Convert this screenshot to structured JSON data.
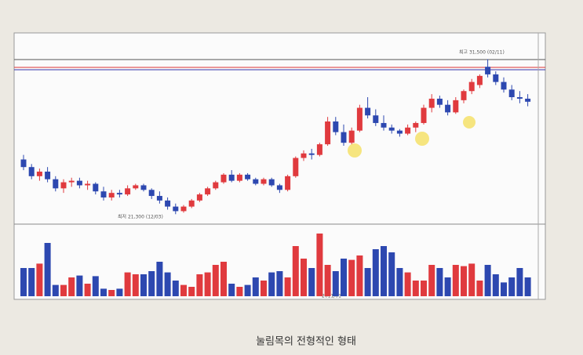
{
  "chart_data": {
    "type": "candlestick",
    "caption": "눌림목의 전형적인 형태",
    "annotations": [
      "최고 31,500 (02/11)",
      "최저 21,300 (12/03)",
      "2011/01"
    ],
    "up_color": "#e03a3e",
    "down_color": "#2d48b0",
    "ylim": [
      20800,
      32300
    ],
    "volume_ylim": [
      0,
      100
    ],
    "ohlc": [
      [
        24900,
        25200,
        24200,
        24400
      ],
      [
        24400,
        24600,
        23600,
        23800
      ],
      [
        23800,
        24300,
        23500,
        24100
      ],
      [
        24100,
        24400,
        23400,
        23600
      ],
      [
        23600,
        23800,
        22800,
        23000
      ],
      [
        23000,
        23600,
        22700,
        23400
      ],
      [
        23400,
        23700,
        23100,
        23500
      ],
      [
        23500,
        23700,
        23000,
        23200
      ],
      [
        23200,
        23500,
        22900,
        23300
      ],
      [
        23300,
        23400,
        22600,
        22800
      ],
      [
        22800,
        23100,
        22200,
        22400
      ],
      [
        22400,
        22900,
        22200,
        22700
      ],
      [
        22700,
        22900,
        22400,
        22600
      ],
      [
        22600,
        23200,
        22500,
        23000
      ],
      [
        23000,
        23300,
        22900,
        23200
      ],
      [
        23200,
        23300,
        22800,
        22900
      ],
      [
        22900,
        23000,
        22300,
        22500
      ],
      [
        22500,
        22800,
        22000,
        22200
      ],
      [
        22200,
        22400,
        21600,
        21800
      ],
      [
        21800,
        22000,
        21300,
        21500
      ],
      [
        21500,
        21900,
        21400,
        21800
      ],
      [
        21800,
        22300,
        21700,
        22200
      ],
      [
        22200,
        22700,
        22100,
        22600
      ],
      [
        22600,
        23100,
        22500,
        23000
      ],
      [
        23000,
        23500,
        22900,
        23400
      ],
      [
        23400,
        24000,
        23300,
        23900
      ],
      [
        23900,
        24200,
        23400,
        23500
      ],
      [
        23500,
        24000,
        23400,
        23900
      ],
      [
        23900,
        24000,
        23500,
        23600
      ],
      [
        23600,
        23700,
        23200,
        23300
      ],
      [
        23300,
        23700,
        23200,
        23600
      ],
      [
        23600,
        23700,
        23100,
        23200
      ],
      [
        23200,
        23300,
        22700,
        22900
      ],
      [
        22900,
        23900,
        22800,
        23800
      ],
      [
        23800,
        25100,
        23700,
        25000
      ],
      [
        25000,
        25500,
        24800,
        25300
      ],
      [
        25300,
        25600,
        24900,
        25200
      ],
      [
        25200,
        26000,
        25100,
        25900
      ],
      [
        25900,
        27700,
        25800,
        27400
      ],
      [
        27400,
        27700,
        26500,
        26700
      ],
      [
        26700,
        27200,
        25800,
        26000
      ],
      [
        26000,
        27000,
        25900,
        26800
      ],
      [
        26800,
        28500,
        26700,
        28300
      ],
      [
        28300,
        29000,
        27600,
        27800
      ],
      [
        27800,
        28200,
        27100,
        27300
      ],
      [
        27300,
        27800,
        26800,
        27000
      ],
      [
        27000,
        27200,
        26600,
        26800
      ],
      [
        26800,
        26900,
        26400,
        26600
      ],
      [
        26600,
        27200,
        26500,
        27000
      ],
      [
        27000,
        27400,
        26700,
        27300
      ],
      [
        27300,
        28500,
        27200,
        28300
      ],
      [
        28300,
        29200,
        28000,
        28900
      ],
      [
        28900,
        29100,
        28300,
        28500
      ],
      [
        28500,
        28800,
        27800,
        28000
      ],
      [
        28000,
        29000,
        27900,
        28800
      ],
      [
        28800,
        29500,
        28600,
        29400
      ],
      [
        29400,
        30200,
        29200,
        30000
      ],
      [
        29800,
        30500,
        29600,
        30400
      ],
      [
        31000,
        31500,
        30300,
        30500
      ],
      [
        30500,
        30700,
        29800,
        30000
      ],
      [
        30000,
        30300,
        29300,
        29500
      ],
      [
        29500,
        29800,
        28800,
        29000
      ],
      [
        29000,
        29400,
        28600,
        28900
      ],
      [
        28900,
        29200,
        28400,
        28700
      ]
    ],
    "volume": [
      45,
      45,
      52,
      85,
      18,
      18,
      30,
      33,
      20,
      32,
      12,
      10,
      12,
      38,
      35,
      35,
      40,
      55,
      38,
      25,
      18,
      15,
      35,
      38,
      50,
      55,
      20,
      15,
      18,
      30,
      25,
      38,
      40,
      30,
      80,
      60,
      45,
      100,
      50,
      40,
      60,
      58,
      65,
      45,
      75,
      80,
      70,
      45,
      38,
      25,
      25,
      50,
      45,
      30,
      50,
      48,
      52,
      25,
      50,
      35,
      22,
      30,
      45,
      30
    ]
  }
}
